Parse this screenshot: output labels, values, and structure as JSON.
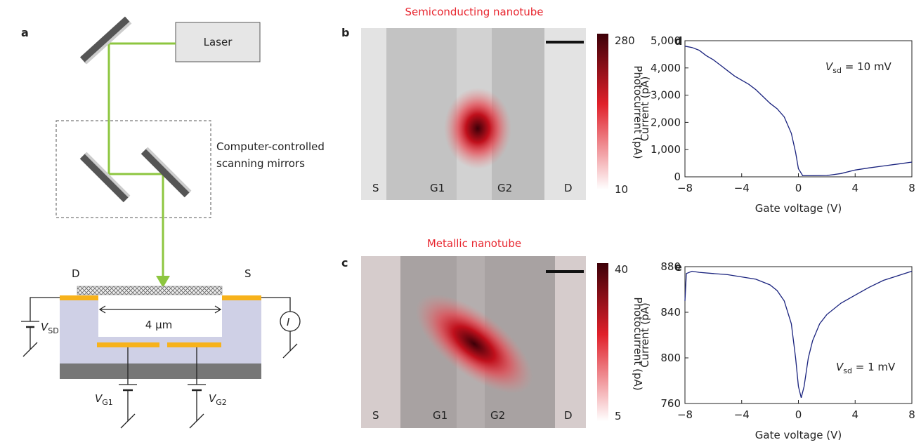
{
  "figure": {
    "a": {
      "label": "a",
      "laser": "Laser",
      "mirrors": [
        "Computer-controlled",
        "scanning mirrors"
      ],
      "drain": "D",
      "source": "S",
      "gap": "4 μm",
      "meter": "I",
      "vsd": {
        "main": "V",
        "sub": "SD"
      },
      "vg1": {
        "main": "V",
        "sub": "G1"
      },
      "vg2": {
        "main": "V",
        "sub": "G2"
      }
    },
    "b": {
      "label": "b",
      "title": "Semiconducting nanotube",
      "colorbar": {
        "label": "Photocurrent (pA)",
        "max": 280,
        "min": 10
      },
      "electrodes": [
        "S",
        "G1",
        "G2",
        "D"
      ]
    },
    "c": {
      "label": "c",
      "title": "Metallic nanotube",
      "colorbar": {
        "label": "Photocurrent (pA)",
        "max": 40,
        "min": 5
      },
      "electrodes": [
        "S",
        "G1",
        "G2",
        "D"
      ]
    }
  },
  "chart_data": [
    {
      "type": "line",
      "panel_label": "d",
      "x": [
        -8,
        -7.5,
        -7,
        -6.5,
        -6,
        -5.5,
        -5,
        -4.5,
        -4,
        -3.5,
        -3,
        -2.5,
        -2,
        -1.5,
        -1,
        -0.5,
        -0.2,
        0,
        0.3,
        1,
        2,
        3,
        4,
        5,
        6,
        7,
        8
      ],
      "series": [
        {
          "color": "#1a237e",
          "values": [
            4800,
            4750,
            4650,
            4450,
            4300,
            4100,
            3900,
            3700,
            3550,
            3400,
            3200,
            2950,
            2700,
            2500,
            2200,
            1600,
            900,
            300,
            40,
            40,
            50,
            120,
            250,
            330,
            400,
            470,
            540
          ]
        }
      ],
      "xlim": [
        -8,
        8
      ],
      "xticks": [
        {
          "value": -8,
          "label": "−8"
        },
        {
          "value": -4,
          "label": "−4"
        },
        0,
        4,
        8
      ],
      "ylim": [
        0,
        5000
      ],
      "yticks": [
        0,
        {
          "value": 1000,
          "label": "1,000"
        },
        {
          "value": 2000,
          "label": "2,000"
        },
        {
          "value": 3000,
          "label": "3,000"
        },
        {
          "value": 4000,
          "label": "4,000"
        },
        {
          "value": 5000,
          "label": "5,000"
        }
      ],
      "xlabel": "Gate voltage (V)",
      "ylabel": "Current (pA)",
      "annotation": {
        "main": "V",
        "sub": "sd",
        "rest": " = 10 mV"
      }
    },
    {
      "type": "line",
      "panel_label": "e",
      "x": [
        -8,
        -7.9,
        -7.5,
        -7,
        -6,
        -5,
        -4,
        -3,
        -2,
        -1.5,
        -1,
        -0.5,
        -0.2,
        0,
        0.2,
        0.4,
        0.7,
        1,
        1.5,
        2,
        3,
        4,
        5,
        6,
        7,
        8
      ],
      "series": [
        {
          "color": "#1a237e",
          "values": [
            850,
            874,
            876,
            875,
            874,
            873,
            871,
            869,
            864,
            859,
            850,
            830,
            800,
            775,
            765,
            775,
            800,
            815,
            830,
            838,
            848,
            855,
            862,
            868,
            872,
            876
          ]
        }
      ],
      "xlim": [
        -8,
        8
      ],
      "xticks": [
        {
          "value": -8,
          "label": "−8"
        },
        {
          "value": -4,
          "label": "−4"
        },
        0,
        4,
        8
      ],
      "ylim": [
        760,
        880
      ],
      "yticks": [
        760,
        800,
        840,
        880
      ],
      "xlabel": "Gate voltage (V)",
      "ylabel": "Current (pA)",
      "annotation": {
        "main": "V",
        "sub": "sd",
        "rest": " = 1 mV"
      }
    }
  ]
}
